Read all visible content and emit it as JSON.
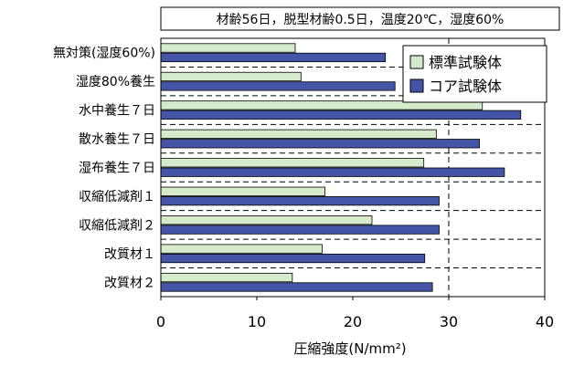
{
  "chart_data": {
    "type": "bar",
    "orientation": "horizontal",
    "title": "材齢56日，脱型材齢0.5日，温度20℃，湿度60%",
    "xlabel": "圧縮強度(N/mm²)",
    "ylabel": "",
    "xlim": [
      0,
      40
    ],
    "x_ticks": [
      "0",
      "10",
      "20",
      "30",
      "40"
    ],
    "grid": "dashed, vertical at 30 and horizontal between categories",
    "legend_position": "top-right",
    "categories": [
      "無対策(湿度60%)",
      "湿度80%養生",
      "水中養生７日",
      "散水養生７日",
      "湿布養生７日",
      "収縮低減剤１",
      "収縮低減剤２",
      "改質材１",
      "改質材２"
    ],
    "series": [
      {
        "name": "標準試験体",
        "color": "#d6ebcc",
        "values": [
          14.0,
          14.6,
          33.5,
          28.7,
          27.4,
          17.1,
          22.0,
          16.8,
          13.7
        ]
      },
      {
        "name": "コア試験体",
        "color": "#4455a8",
        "values": [
          23.4,
          24.4,
          37.5,
          33.2,
          35.8,
          29.0,
          29.0,
          27.5,
          28.3
        ]
      }
    ]
  }
}
